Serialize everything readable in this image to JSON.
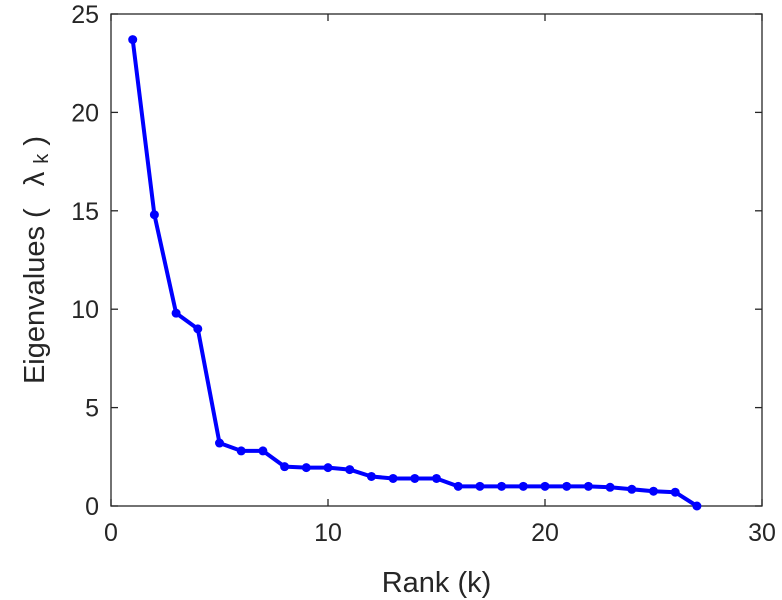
{
  "chart_data": {
    "type": "line",
    "title": "",
    "xlabel": "Rank (k)",
    "ylabel": "Eigenvalues ( λ_k)",
    "ylabel_parts": {
      "main": "Eigenvalues (",
      "symbol": "λ",
      "subscript": "k",
      "close": ")"
    },
    "xlim": [
      0,
      30
    ],
    "ylim": [
      0,
      25
    ],
    "xticks": [
      0,
      10,
      20,
      30
    ],
    "yticks": [
      0,
      5,
      10,
      15,
      20,
      25
    ],
    "grid": false,
    "legend": "none",
    "series": [
      {
        "color": "#0000ff",
        "marker": "circle",
        "x": [
          1,
          2,
          3,
          4,
          5,
          6,
          7,
          8,
          9,
          10,
          11,
          12,
          13,
          14,
          15,
          16,
          17,
          18,
          19,
          20,
          21,
          22,
          23,
          24,
          25,
          26,
          27
        ],
        "y": [
          23.7,
          14.8,
          9.8,
          9.0,
          3.2,
          2.8,
          2.8,
          2.0,
          1.95,
          1.95,
          1.85,
          1.5,
          1.4,
          1.4,
          1.4,
          1.0,
          1.0,
          1.0,
          1.0,
          1.0,
          1.0,
          1.0,
          0.95,
          0.85,
          0.75,
          0.7,
          0.0
        ]
      }
    ]
  }
}
